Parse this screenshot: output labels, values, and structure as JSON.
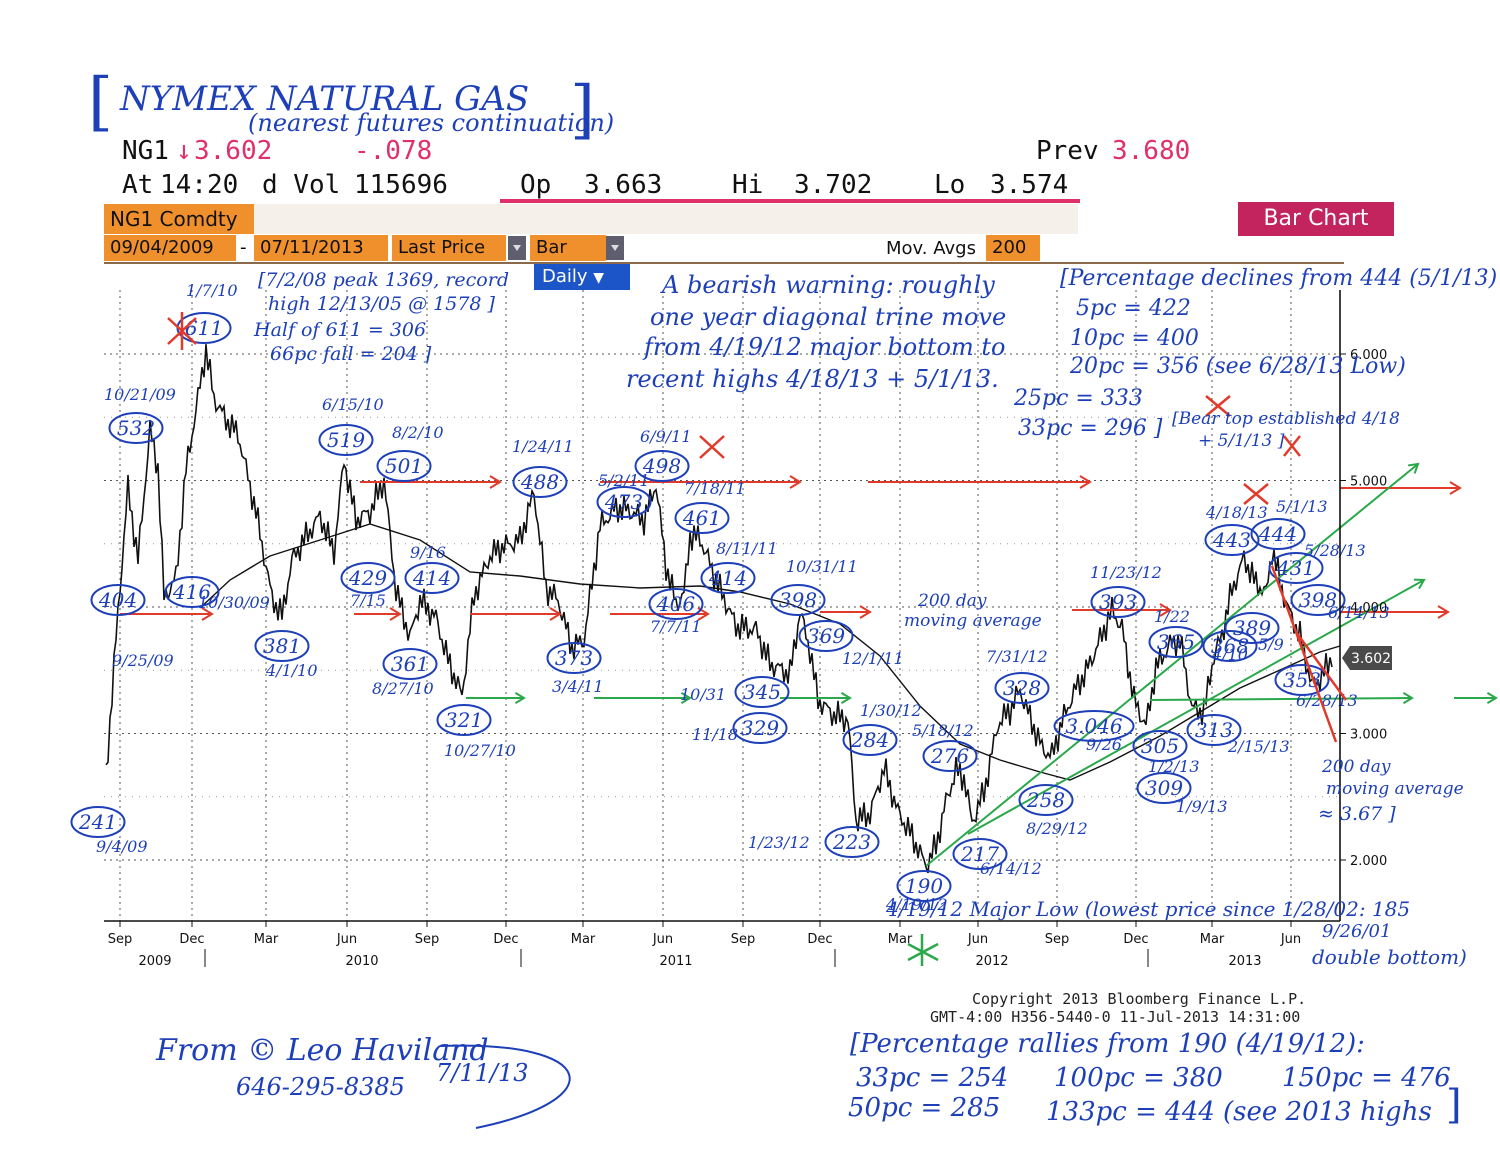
{
  "header": {
    "title_line1": "NYMEX NATURAL GAS",
    "title_line2": "(nearest futures continuation)",
    "ticker": "NG1",
    "last_arrow": "↓",
    "last_price": "3.602",
    "change": "-.078",
    "prev_label": "Prev",
    "prev_value": "3.680",
    "at_label": "At",
    "at_time": "14:20",
    "dvol_label": "d Vol",
    "dvol_value": "115696",
    "op_label": "Op",
    "op_value": "3.663",
    "hi_label": "Hi",
    "hi_value": "3.702",
    "lo_label": "Lo",
    "lo_value": "3.574"
  },
  "toolbar": {
    "security": "NG1 Comdty",
    "chart_type_button": "Bar Chart",
    "start_date": "09/04/2009",
    "end_date": "07/11/2013",
    "field": "Last Price",
    "style": "Bar",
    "mov_avgs_label": "Mov. Avgs",
    "mov_avgs_value": "200",
    "period": "Daily"
  },
  "chart_data": {
    "type": "bar",
    "title": "NYMEX NATURAL GAS",
    "subtitle": "(nearest futures continuation)",
    "x_ticks": [
      "Sep",
      "Dec",
      "Mar",
      "Jun",
      "Sep",
      "Dec",
      "Mar",
      "Jun",
      "Sep",
      "Dec",
      "Mar",
      "Jun",
      "Sep",
      "Dec",
      "Mar",
      "Jun"
    ],
    "year_labels": [
      "2009",
      "2010",
      "2011",
      "2012",
      "2013"
    ],
    "y_ticks": [
      "2.000",
      "3.000",
      "4.000",
      "5.000",
      "6.000"
    ],
    "y_range": [
      1.8,
      6.4
    ],
    "last_value_label": "3.602",
    "moving_average_label": "200",
    "grid": true,
    "legend": "none"
  },
  "annotations": {
    "peak_note": [
      "[7/2/08 peak 1369, record",
      "high 12/13/05 @ 1578 ]",
      "Half of 611 = 306",
      "66pc fall = 204 ]"
    ],
    "bearish_note": [
      "A bearish warning: roughly",
      "one year diagonal trine move",
      "from 4/19/12 major bottom to",
      "recent highs 4/18/13 + 5/1/13."
    ],
    "pct_decline_note": [
      "[Percentage declines from 444 (5/1/13)",
      "5pc = 422",
      "10pc = 400",
      "20pc = 356 (see 6/28/13 Low)",
      "25pc = 333",
      "33pc = 296 ]"
    ],
    "bear_top_note": [
      "[Bear top established 4/18",
      "+ 5/1/13 ]"
    ],
    "ma_note": [
      "200 day",
      "moving average"
    ],
    "ma_right_note": [
      "200 day",
      "moving average",
      "≈ 3.67 ]"
    ],
    "major_low_note": "4/19/12 Major Low (lowest price since 1/28/02: 185",
    "double_bottom_note": [
      "9/26/01",
      "double bottom)"
    ],
    "rally_note": [
      "[Percentage rallies from 190 (4/19/12):",
      "33pc = 254",
      "50pc = 285",
      "100pc = 380",
      "133pc = 444 (see 2013 highs",
      "150pc = 476"
    ],
    "signature": [
      "From © Leo Haviland",
      "646-295-8385",
      "7/11/13"
    ],
    "copyright": [
      "Copyright 2013 Bloomberg Finance L.P.",
      "GMT-4:00 H356-5440-0 11-Jul-2013 14:31:00"
    ],
    "labels": [
      {
        "value": "241",
        "date": "9/4/09"
      },
      {
        "value": "532",
        "date": "10/21/09"
      },
      {
        "value": "404",
        "date": "9/25/09"
      },
      {
        "value": "416",
        "date": "10/30/09"
      },
      {
        "value": "611",
        "date": "1/7/10"
      },
      {
        "value": "381",
        "date": "4/1/10"
      },
      {
        "value": "519",
        "date": "6/15/10"
      },
      {
        "value": "501",
        "date": "8/2/10"
      },
      {
        "value": "429",
        "date": "7/15"
      },
      {
        "value": "414",
        "date": "9/16"
      },
      {
        "value": "361",
        "date": "8/27/10"
      },
      {
        "value": "321",
        "date": "10/27/10"
      },
      {
        "value": "488",
        "date": "1/24/11"
      },
      {
        "value": "373",
        "date": "3/4/11"
      },
      {
        "value": "473",
        "date": "5/2/11"
      },
      {
        "value": "498",
        "date": "6/9/11"
      },
      {
        "value": "461",
        "date": "7/18/11"
      },
      {
        "value": "406",
        "date": "7/7/11"
      },
      {
        "value": "414",
        "date": "8/11/11"
      },
      {
        "value": "398",
        "date": "10/31/11"
      },
      {
        "value": "345",
        "date": "10/31"
      },
      {
        "value": "329",
        "date": "11/18"
      },
      {
        "value": "369",
        "date": "12/1/11"
      },
      {
        "value": "284",
        "date": "1/30/12"
      },
      {
        "value": "223",
        "date": "1/23/12"
      },
      {
        "value": "276",
        "date": "5/18/12"
      },
      {
        "value": "190",
        "date": "4/19/12"
      },
      {
        "value": "217",
        "date": "6/14/12"
      },
      {
        "value": "328",
        "date": "7/31/12"
      },
      {
        "value": "258",
        "date": "8/29/12"
      },
      {
        "value": "3.046",
        "date": "9/26"
      },
      {
        "value": "393",
        "date": "11/23/12"
      },
      {
        "value": "365",
        "date": "1/22"
      },
      {
        "value": "305",
        "date": "1/2/13"
      },
      {
        "value": "309",
        "date": "1/9/13"
      },
      {
        "value": "313",
        "date": "2/15/13"
      },
      {
        "value": "443",
        "date": "4/18/13"
      },
      {
        "value": "444",
        "date": "5/1/13"
      },
      {
        "value": "431",
        "date": "5/28/13"
      },
      {
        "value": "398",
        "date": "6/14/13"
      },
      {
        "value": "389",
        "date": "5/9"
      },
      {
        "value": "368",
        "date": "4/10"
      },
      {
        "value": "353",
        "date": "6/28/13"
      }
    ]
  }
}
